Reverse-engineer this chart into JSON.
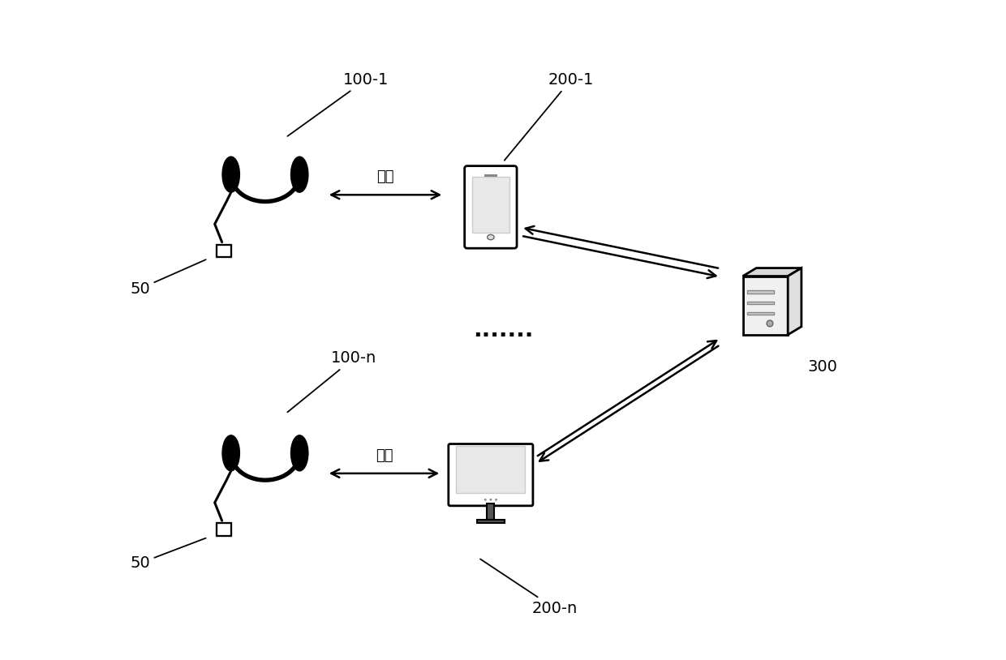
{
  "bg_color": "#ffffff",
  "label_color": "#000000",
  "labels": {
    "top_headset": "100-1",
    "top_headset_sensor": "50",
    "top_phone": "200-1",
    "bottom_headset": "100-n",
    "bottom_headset_sensor": "50",
    "bottom_device": "200-n",
    "server": "300",
    "bluetooth_top": "蓝牙",
    "bluetooth_bottom": "蓝牙",
    "dots": "......."
  },
  "figsize": [
    12.4,
    8.14
  ],
  "dpi": 100
}
